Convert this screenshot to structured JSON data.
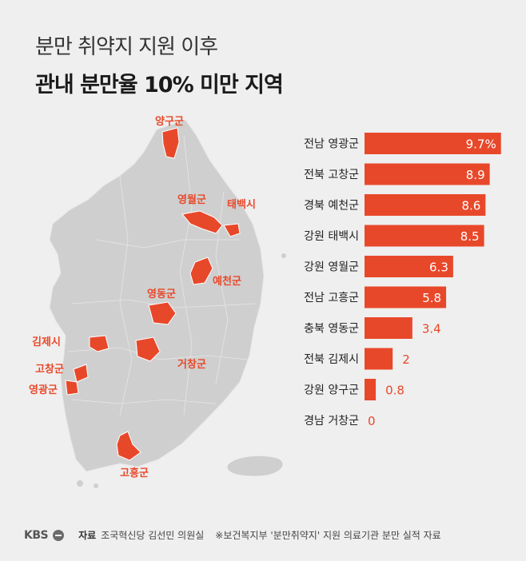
{
  "title_line1": "분만 취약지 지원 이후",
  "title_line2": "관내 분만율 10% 미만 지역",
  "map_labels": [
    "양구군",
    "영월군",
    "태백시",
    "예천군",
    "영동군",
    "김제시",
    "거창군",
    "고창군",
    "영광군",
    "고흥군"
  ],
  "footer": {
    "logo": "KBS",
    "source_label": "자료",
    "source": "조국혁신당 김선민 의원실",
    "note": "※보건복지부 '분만취약지' 지원 의료기관 분만 실적 자료"
  },
  "colors": {
    "accent": "#e8482a",
    "map_gray": "#cfcfcf",
    "background": "#efefef"
  },
  "chart_data": {
    "type": "bar",
    "orientation": "horizontal",
    "title": "관내 분만율 10% 미만 지역",
    "categories": [
      "전남 영광군",
      "전북 고창군",
      "경북 예천군",
      "강원 태백시",
      "강원 영월군",
      "전남 고흥군",
      "충북 영동군",
      "전북 김제시",
      "강원 양구군",
      "경남 거창군"
    ],
    "values": [
      9.7,
      8.9,
      8.6,
      8.5,
      6.3,
      5.8,
      3.4,
      2,
      0.8,
      0
    ],
    "value_labels": [
      "9.7%",
      "8.9",
      "8.6",
      "8.5",
      "6.3",
      "5.8",
      "3.4",
      "2",
      "0.8",
      "0"
    ],
    "xlim": [
      0,
      10
    ],
    "grid": false,
    "legend": "none"
  }
}
